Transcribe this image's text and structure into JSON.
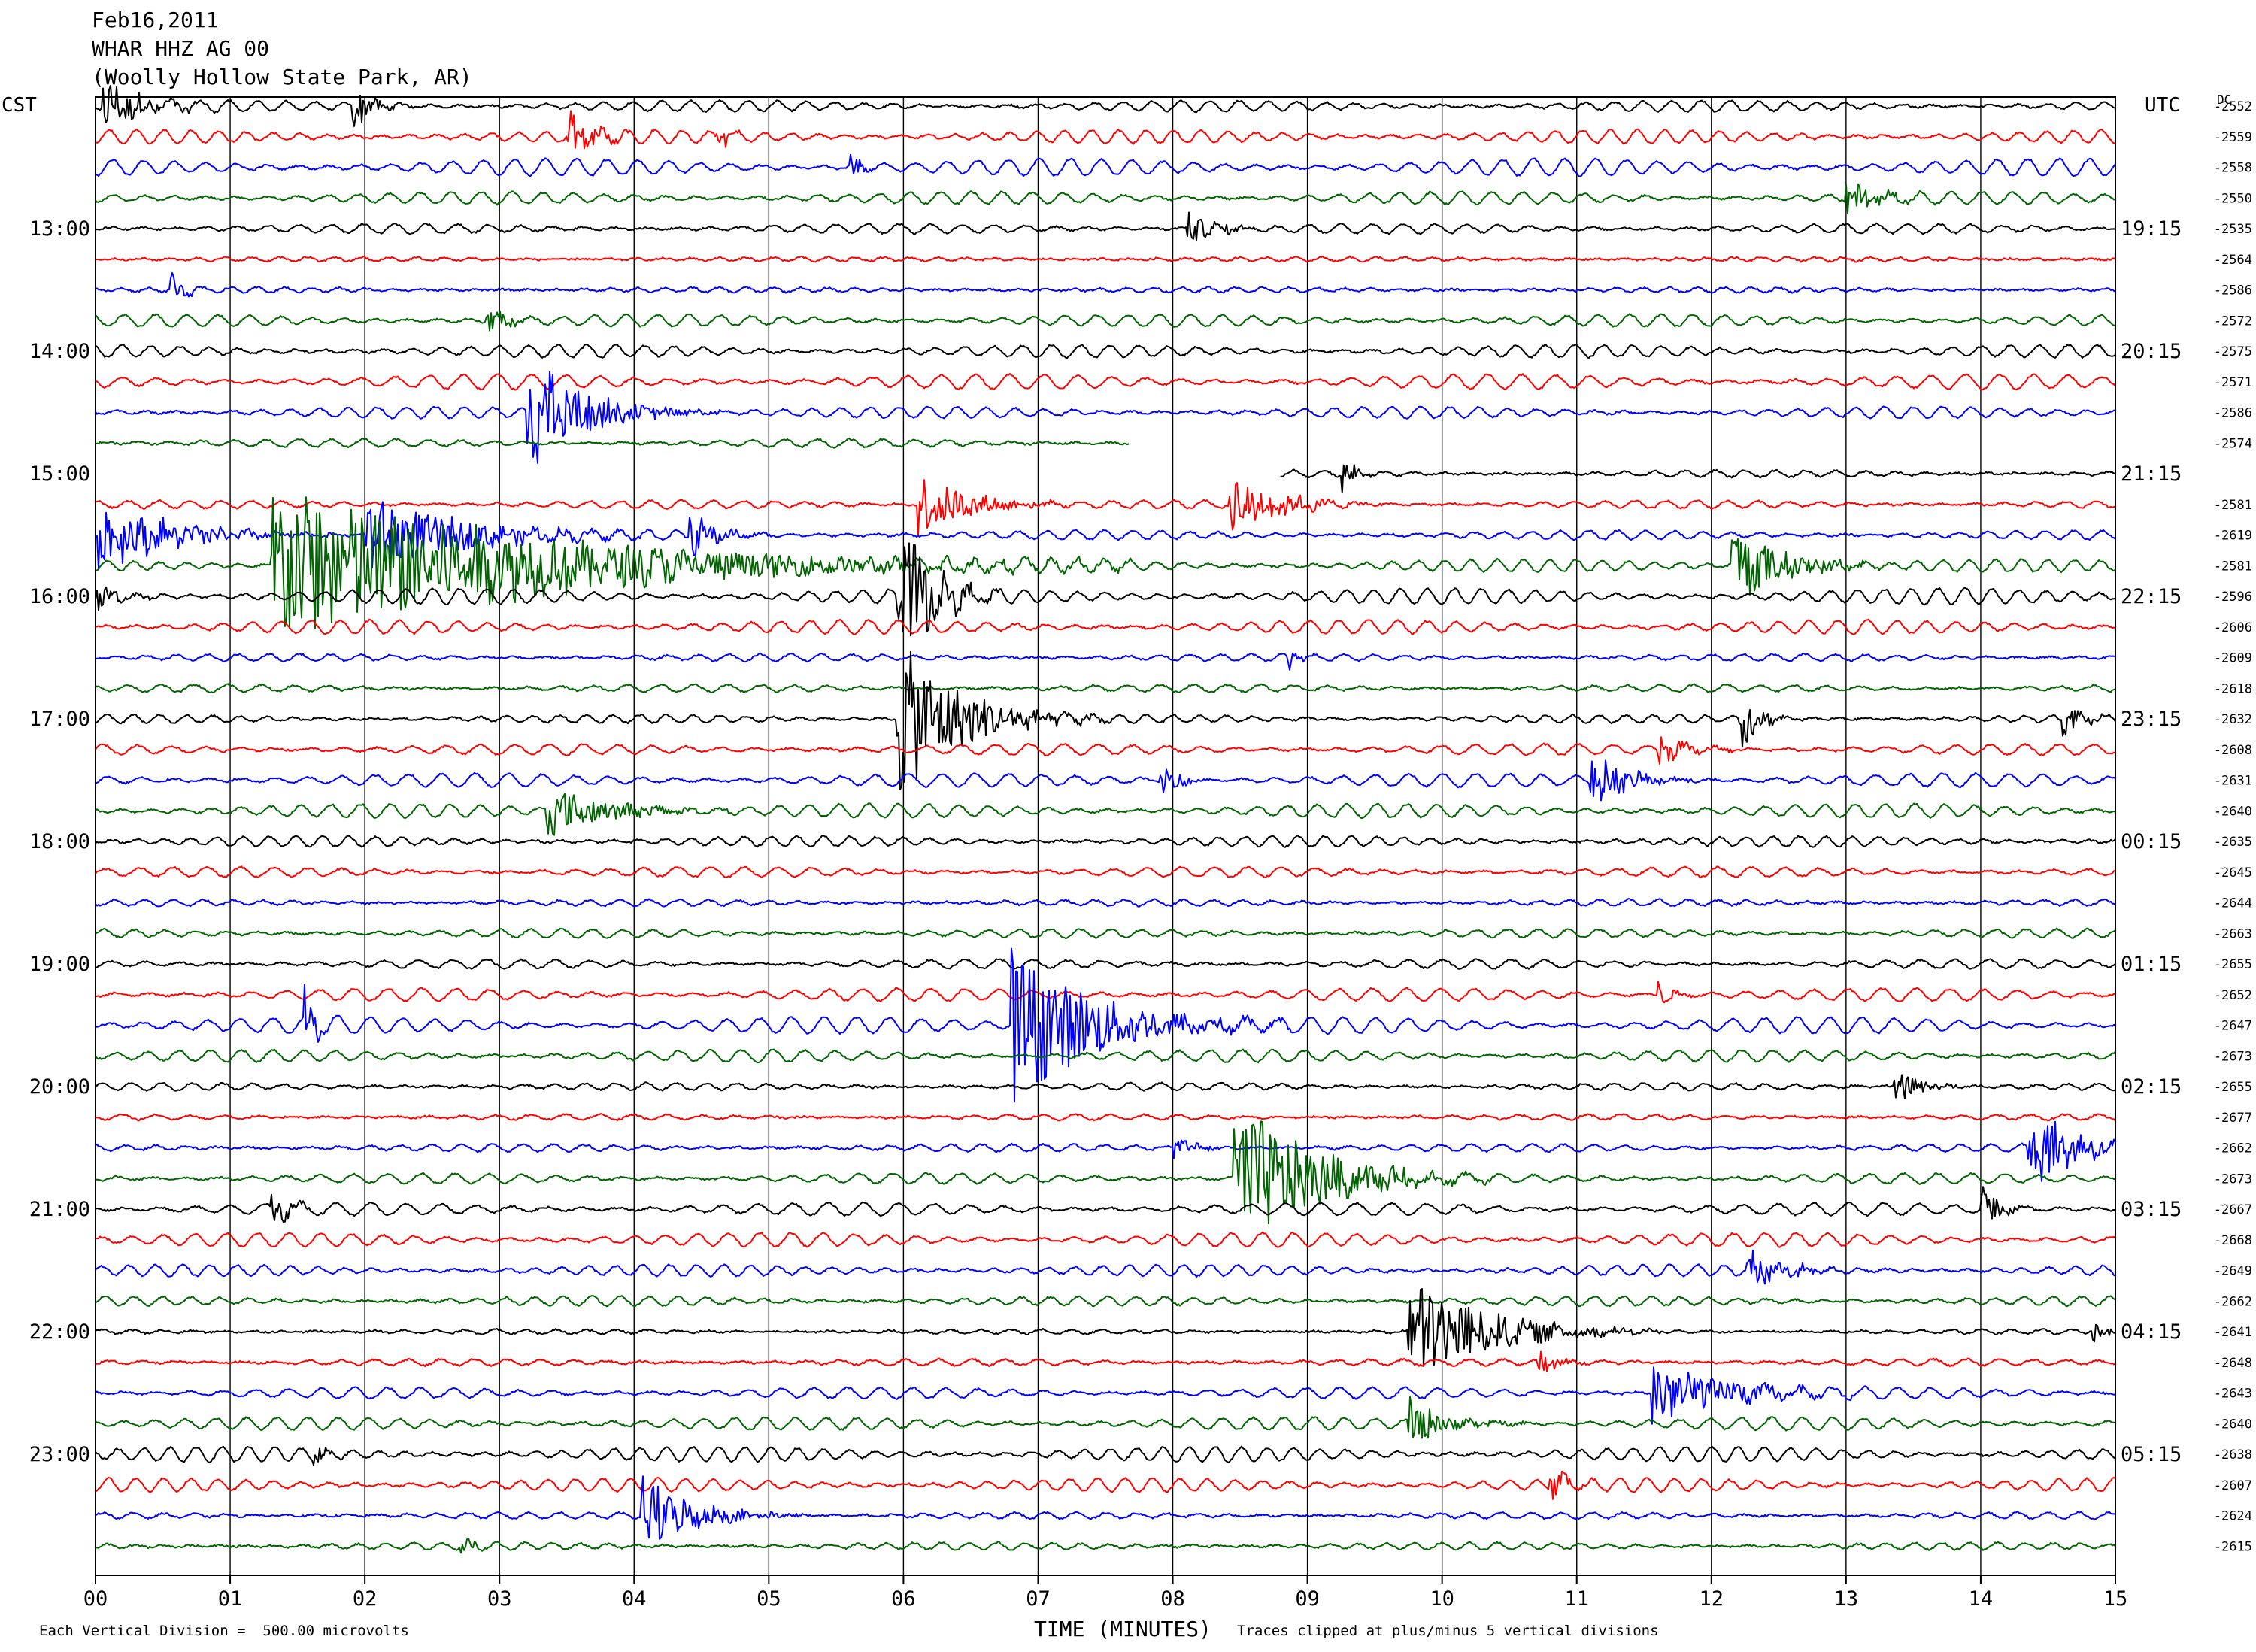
{
  "header": {
    "date": "Feb16,2011",
    "station": "WHAR HHZ AG 00",
    "location": "(Woolly Hollow State Park, AR)"
  },
  "footer": {
    "scale_note": "Each Vertical Division =  500.00 microvolts",
    "xlabel": "TIME (MINUTES)",
    "clip_note": "Traces clipped at plus/minus 5 vertical divisions"
  },
  "colors": {
    "trace_cycle": [
      "#000000",
      "#ff0000",
      "#0000ff",
      "#006400"
    ],
    "grid": "#000000"
  },
  "chart_data": {
    "type": "line",
    "chart_kind": "helicorder seismogram",
    "left_axis_label": "CST",
    "right_axis_label": "UTC",
    "dc_label": "DC",
    "x_ticks": [
      "00",
      "01",
      "02",
      "03",
      "04",
      "05",
      "06",
      "07",
      "08",
      "09",
      "10",
      "11",
      "12",
      "13",
      "14",
      "15"
    ],
    "xlim": [
      0,
      15
    ],
    "minutes_per_row": 15,
    "row_count": 48,
    "cst_labels": [
      "13:00",
      "14:00",
      "15:00",
      "16:00",
      "17:00",
      "18:00",
      "19:00",
      "20:00",
      "21:00",
      "22:00",
      "23:00"
    ],
    "utc_labels": [
      "19:15",
      "20:15",
      "21:15",
      "22:15",
      "23:15",
      "00:15",
      "01:15",
      "02:15",
      "03:15",
      "04:15",
      "05:15"
    ],
    "dc_values": [
      "-2552",
      "-2559",
      "-2558",
      "-2550",
      "-2535",
      "-2564",
      "-2586",
      "-2572",
      "-2575",
      "-2571",
      "-2586",
      "-2574",
      "",
      "-2581",
      "-2619",
      "-2581",
      "-2596",
      "-2606",
      "-2609",
      "-2618",
      "-2632",
      "-2608",
      "-2631",
      "-2640",
      "-2635",
      "-2645",
      "-2644",
      "-2663",
      "-2655",
      "-2652",
      "-2647",
      "-2673",
      "-2655",
      "-2677",
      "-2662",
      "-2673",
      "-2667",
      "-2668",
      "-2649",
      "-2662",
      "-2641",
      "-2648",
      "-2643",
      "-2640",
      "-2638",
      "-2607",
      "-2624",
      "-2615"
    ],
    "gap": {
      "end_row": 11,
      "end_minute": 7.68,
      "resume_row": 12,
      "resume_minute": 8.8
    },
    "events": [
      {
        "row": 0,
        "minute": 0.05,
        "amp": 1.8,
        "dur": 0.6
      },
      {
        "row": 0,
        "minute": 1.9,
        "amp": 1.5,
        "dur": 0.3
      },
      {
        "row": 1,
        "minute": 3.5,
        "amp": 1.5,
        "dur": 0.4
      },
      {
        "row": 1,
        "minute": 4.6,
        "amp": 1.0,
        "dur": 0.2
      },
      {
        "row": 2,
        "minute": 5.6,
        "amp": 0.8,
        "dur": 0.2
      },
      {
        "row": 3,
        "minute": 13.0,
        "amp": 1.0,
        "dur": 0.5
      },
      {
        "row": 4,
        "minute": 8.1,
        "amp": 1.0,
        "dur": 0.5
      },
      {
        "row": 6,
        "minute": 0.55,
        "amp": 1.5,
        "dur": 0.2
      },
      {
        "row": 7,
        "minute": 2.9,
        "amp": 1.2,
        "dur": 0.3
      },
      {
        "row": 10,
        "minute": 3.2,
        "amp": 3.5,
        "dur": 0.9
      },
      {
        "row": 12,
        "minute": 9.25,
        "amp": 1.2,
        "dur": 0.2
      },
      {
        "row": 13,
        "minute": 6.1,
        "amp": 2.0,
        "dur": 0.8
      },
      {
        "row": 13,
        "minute": 8.4,
        "amp": 2.0,
        "dur": 0.8
      },
      {
        "row": 14,
        "minute": 0.02,
        "amp": 2.0,
        "dur": 1.2
      },
      {
        "row": 14,
        "minute": 2.0,
        "amp": 2.5,
        "dur": 1.5
      },
      {
        "row": 14,
        "minute": 4.4,
        "amp": 1.5,
        "dur": 0.4
      },
      {
        "row": 15,
        "minute": 1.3,
        "amp": 5.0,
        "dur": 4.0
      },
      {
        "row": 15,
        "minute": 12.15,
        "amp": 2.5,
        "dur": 0.8
      },
      {
        "row": 16,
        "minute": 0.0,
        "amp": 0.8,
        "dur": 0.4
      },
      {
        "row": 16,
        "minute": 5.95,
        "amp": 5.0,
        "dur": 0.5
      },
      {
        "row": 18,
        "minute": 8.85,
        "amp": 1.0,
        "dur": 0.2
      },
      {
        "row": 20,
        "minute": 5.95,
        "amp": 5.0,
        "dur": 1.0
      },
      {
        "row": 20,
        "minute": 12.2,
        "amp": 2.2,
        "dur": 0.3
      },
      {
        "row": 20,
        "minute": 14.6,
        "amp": 1.0,
        "dur": 0.3
      },
      {
        "row": 21,
        "minute": 11.6,
        "amp": 1.2,
        "dur": 0.4
      },
      {
        "row": 22,
        "minute": 7.9,
        "amp": 1.2,
        "dur": 0.3
      },
      {
        "row": 22,
        "minute": 11.1,
        "amp": 1.6,
        "dur": 0.6
      },
      {
        "row": 23,
        "minute": 3.35,
        "amp": 1.5,
        "dur": 1.0
      },
      {
        "row": 29,
        "minute": 11.6,
        "amp": 1.0,
        "dur": 0.2
      },
      {
        "row": 30,
        "minute": 6.8,
        "amp": 5.0,
        "dur": 1.3
      },
      {
        "row": 30,
        "minute": 1.55,
        "amp": 2.0,
        "dur": 0.2
      },
      {
        "row": 32,
        "minute": 13.35,
        "amp": 1.2,
        "dur": 0.4
      },
      {
        "row": 34,
        "minute": 8.0,
        "amp": 1.0,
        "dur": 0.3
      },
      {
        "row": 34,
        "minute": 14.35,
        "amp": 2.5,
        "dur": 0.8
      },
      {
        "row": 35,
        "minute": 8.45,
        "amp": 5.0,
        "dur": 1.2
      },
      {
        "row": 36,
        "minute": 1.3,
        "amp": 1.0,
        "dur": 0.3
      },
      {
        "row": 36,
        "minute": 14.0,
        "amp": 1.5,
        "dur": 0.3
      },
      {
        "row": 38,
        "minute": 12.25,
        "amp": 1.2,
        "dur": 0.6
      },
      {
        "row": 40,
        "minute": 9.75,
        "amp": 3.5,
        "dur": 1.2
      },
      {
        "row": 40,
        "minute": 14.8,
        "amp": 1.0,
        "dur": 0.2
      },
      {
        "row": 41,
        "minute": 10.7,
        "amp": 1.0,
        "dur": 0.3
      },
      {
        "row": 42,
        "minute": 11.55,
        "amp": 2.5,
        "dur": 1.0
      },
      {
        "row": 43,
        "minute": 9.75,
        "amp": 1.5,
        "dur": 0.6
      },
      {
        "row": 44,
        "minute": 1.6,
        "amp": 1.0,
        "dur": 0.2
      },
      {
        "row": 45,
        "minute": 10.8,
        "amp": 1.0,
        "dur": 0.3
      },
      {
        "row": 46,
        "minute": 4.05,
        "amp": 2.5,
        "dur": 0.8
      },
      {
        "row": 47,
        "minute": 2.7,
        "amp": 0.8,
        "dur": 0.2
      }
    ]
  }
}
